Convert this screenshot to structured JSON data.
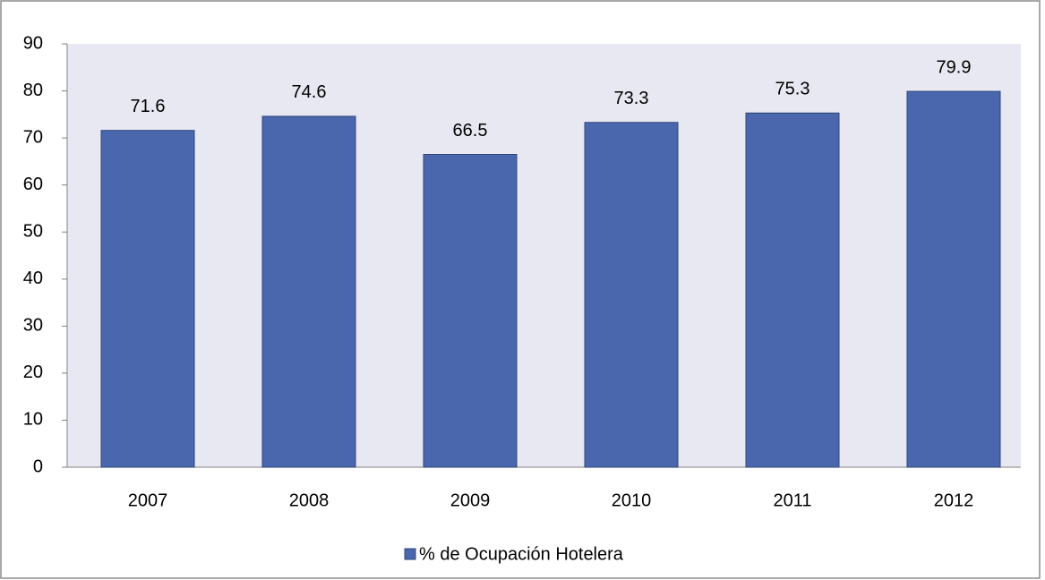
{
  "chart_data": {
    "type": "bar",
    "categories": [
      "2007",
      "2008",
      "2009",
      "2010",
      "2011",
      "2012"
    ],
    "series": [
      {
        "name": "% de Ocupación Hotelera",
        "color": "#4a66ac",
        "values": [
          71.6,
          74.6,
          66.5,
          73.3,
          75.3,
          79.9
        ]
      }
    ],
    "ylim": [
      0,
      90
    ],
    "yticks": [
      0,
      10,
      20,
      30,
      40,
      50,
      60,
      70,
      80,
      90
    ],
    "grid": false,
    "legend": "bottom"
  }
}
